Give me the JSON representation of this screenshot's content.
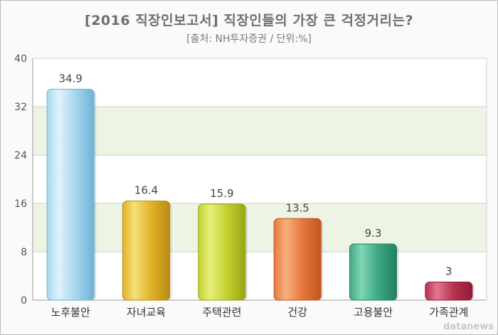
{
  "chart_data": {
    "type": "bar",
    "title": "[2016 직장인보고서] 직장인들의 가장 큰 걱정거리는?",
    "subtitle": "[출처: NH투자증권 / 단위:%]",
    "categories": [
      "노후불안",
      "자녀교육",
      "주택관련",
      "건강",
      "고용불안",
      "가족관계"
    ],
    "values": [
      34.9,
      16.4,
      15.9,
      13.5,
      9.3,
      3
    ],
    "value_labels": [
      "34.9",
      "16.4",
      "15.9",
      "13.5",
      "9.3",
      "3"
    ],
    "ylim": [
      0,
      40
    ],
    "yticks": [
      0,
      8,
      16,
      24,
      32,
      40
    ],
    "grid": true,
    "band_colors": [
      "#ffffff",
      "#eef4e4"
    ],
    "bar_colors": [
      {
        "light": "#dff2fb",
        "mid": "#a7d6ef",
        "dark": "#6eb3d8"
      },
      {
        "light": "#f7df7a",
        "mid": "#e0b32a",
        "dark": "#b98a12"
      },
      {
        "light": "#e6f07a",
        "mid": "#c4d030",
        "dark": "#98a515"
      },
      {
        "light": "#f6b07c",
        "mid": "#e6793f",
        "dark": "#c2541f"
      },
      {
        "light": "#7fd6b3",
        "mid": "#3ea986",
        "dark": "#21805f"
      },
      {
        "light": "#e0788e",
        "mid": "#b93250",
        "dark": "#8d1d36"
      }
    ]
  },
  "watermark": "datanews"
}
